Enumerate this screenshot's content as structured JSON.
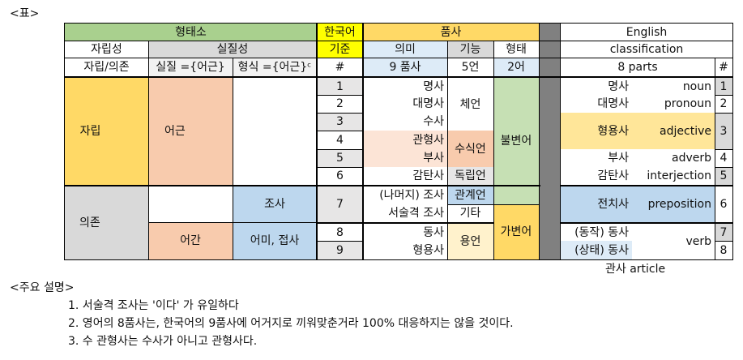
{
  "heading": "<표>",
  "colors": {
    "green": "#a9d08e",
    "gray_header": "#d9d9d9",
    "yellow_bright": "#ffff00",
    "yellow": "#ffd966",
    "blue_light": "#ddebf7",
    "blue": "#bdd7ee",
    "peach": "#f8cbad",
    "peach_light": "#fce4d6",
    "cream": "#fff2cc",
    "green_light": "#c6e0b4",
    "row_gray": "#e7e6e6",
    "sep_gray": "#808080",
    "gray_mid": "#d9d9d9"
  },
  "header": {
    "r1": {
      "morpheme": "형태소",
      "korean": "한국어",
      "pos": "품사",
      "english": "English"
    },
    "r2": {
      "independence": "자립성",
      "substantiality": "실질성",
      "standard": "기준",
      "meaning": "의미",
      "function": "기능",
      "form": "형태",
      "classification": "classification"
    },
    "r3": {
      "indep_dep": "자립/의존",
      "real": "실질 ={어근}",
      "formal": "형식 ={어근}ᶜ",
      "num": "#",
      "nine_pos": "9 품사",
      "five": "5언",
      "two": "2어",
      "eight_parts": "8 parts",
      "en_num": "#"
    }
  },
  "left": {
    "independent": "자립",
    "root": "어근",
    "dependent": "의존",
    "particle": "조사",
    "stem": "어간",
    "ending": "어미, 접사"
  },
  "ko_rows": [
    {
      "num": "1",
      "pos": "명사"
    },
    {
      "num": "2",
      "pos": "대명사"
    },
    {
      "num": "3",
      "pos": "수사"
    },
    {
      "num": "4",
      "pos": "관형사"
    },
    {
      "num": "5",
      "pos": "부사"
    },
    {
      "num": "6",
      "pos": "감탄사"
    },
    {
      "num": "7",
      "pos_a": "(나머지) 조사",
      "pos_b": "서술격 조사"
    },
    {
      "num": "8",
      "pos": "동사"
    },
    {
      "num": "9",
      "pos": "형용사"
    }
  ],
  "functions": {
    "substantive": "체언",
    "modifier": "수식언",
    "independent": "독립언",
    "relational": "관계언",
    "other": "기타",
    "predicate": "용언"
  },
  "forms": {
    "invariable": "불변어",
    "variable": "가변어"
  },
  "en_rows": [
    {
      "ko": "명사",
      "en": "noun",
      "num": "1"
    },
    {
      "ko": "대명사",
      "en": "pronoun",
      "num": "2"
    },
    {
      "ko": "형용사",
      "en": "adjective",
      "num": "3"
    },
    {
      "ko": "부사",
      "en": "adverb",
      "num": "4"
    },
    {
      "ko": "감탄사",
      "en": "interjection",
      "num": "5"
    },
    {
      "ko": "전치사",
      "en": "preposition",
      "num": "6"
    },
    {
      "ko_a": "(동작) 동사",
      "ko_b": "(상태) 동사",
      "en": "verb",
      "num_a": "7",
      "num_b": "8"
    }
  ],
  "article_note": "관사 article",
  "notes": {
    "title": "<주요 설명>",
    "items": [
      "1. 서술격 조사는 '이다' 가 유일하다",
      "2. 영어의 8품사는, 한국어의 9품사에 어거지로 끼워맞춘거라 100% 대응하지는 않을 것이다.",
      "3. 수 관형사는 수사가 아니고 관형사다."
    ]
  }
}
